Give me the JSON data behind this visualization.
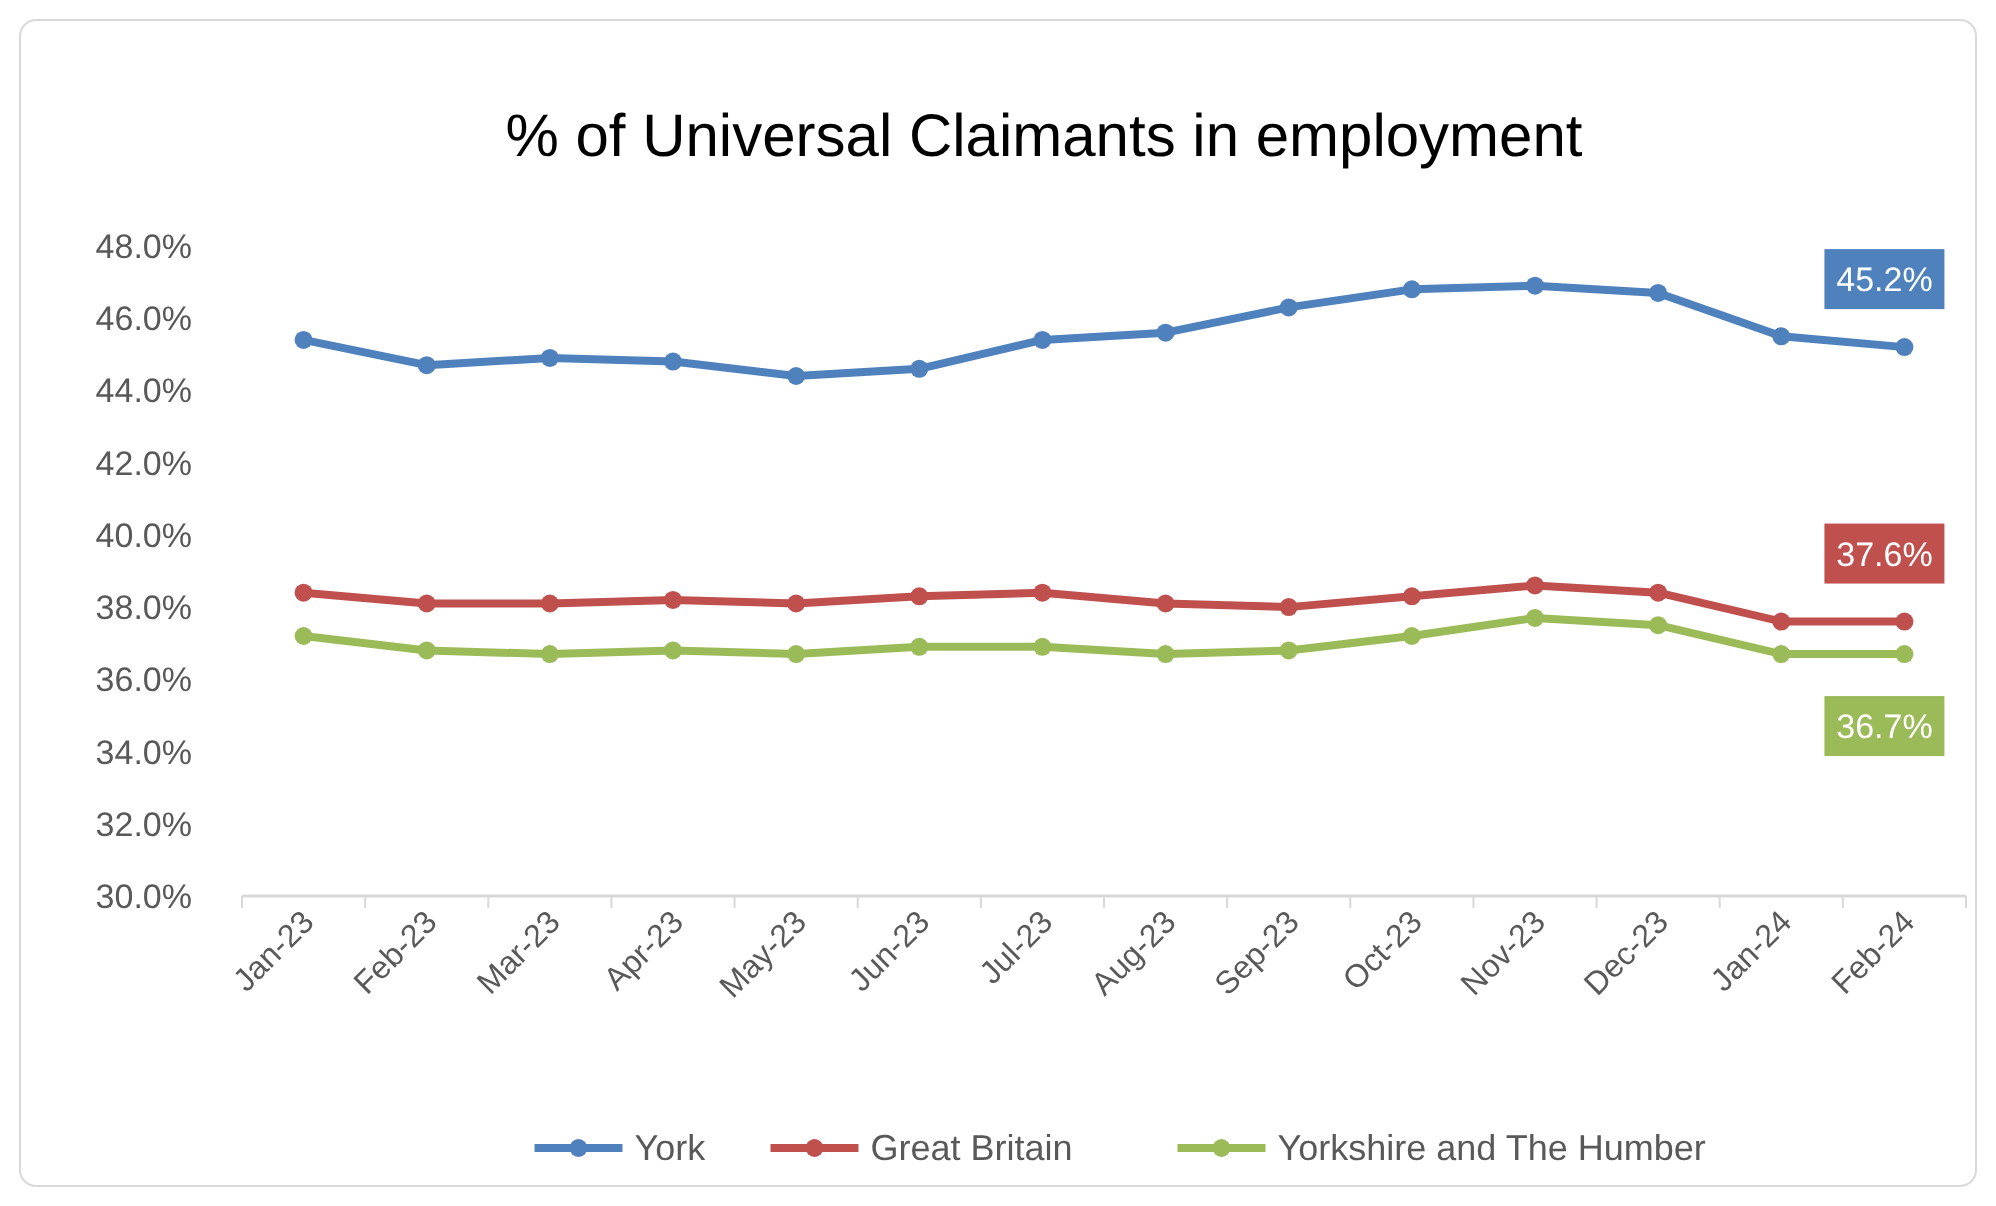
{
  "chart_data": {
    "type": "line",
    "title": "% of Universal Claimants in employment",
    "categories": [
      "Jan-23",
      "Feb-23",
      "Mar-23",
      "Apr-23",
      "May-23",
      "Jun-23",
      "Jul-23",
      "Aug-23",
      "Sep-23",
      "Oct-23",
      "Nov-23",
      "Dec-23",
      "Jan-24",
      "Feb-24"
    ],
    "series": [
      {
        "name": "York",
        "color": "#4f81bd",
        "values": [
          45.4,
          44.7,
          44.9,
          44.8,
          44.4,
          44.6,
          45.4,
          45.6,
          46.3,
          46.8,
          46.9,
          46.7,
          45.5,
          45.2
        ],
        "value_labels": [
          null,
          null,
          null,
          null,
          null,
          null,
          null,
          null,
          null,
          null,
          null,
          null,
          null,
          "45.2%"
        ]
      },
      {
        "name": "Great Britain",
        "color": "#c0504d",
        "values": [
          38.4,
          38.1,
          38.1,
          38.2,
          38.1,
          38.3,
          38.4,
          38.1,
          38.0,
          38.3,
          38.6,
          38.4,
          37.6,
          37.6
        ],
        "value_labels": [
          null,
          null,
          null,
          null,
          null,
          null,
          null,
          null,
          null,
          null,
          null,
          null,
          null,
          "37.6%"
        ]
      },
      {
        "name": "Yorkshire and The Humber",
        "color": "#9bbb59",
        "values": [
          37.2,
          36.8,
          36.7,
          36.8,
          36.7,
          36.9,
          36.9,
          36.7,
          36.8,
          37.2,
          37.7,
          37.5,
          36.7,
          36.7
        ],
        "value_labels": [
          null,
          null,
          null,
          null,
          null,
          null,
          null,
          null,
          null,
          null,
          null,
          null,
          null,
          "36.7%"
        ]
      }
    ],
    "ylim": [
      30,
      48
    ],
    "yticks": [
      {
        "value": 30,
        "label": "30.0%"
      },
      {
        "value": 32,
        "label": "32.0%"
      },
      {
        "value": 34,
        "label": "34.0%"
      },
      {
        "value": 36,
        "label": "36.0%"
      },
      {
        "value": 38,
        "label": "38.0%"
      },
      {
        "value": 40,
        "label": "40.0%"
      },
      {
        "value": 42,
        "label": "42.0%"
      },
      {
        "value": 44,
        "label": "44.0%"
      },
      {
        "value": 46,
        "label": "46.0%"
      },
      {
        "value": 48,
        "label": "48.0%"
      }
    ],
    "grid": false,
    "legend": "bottom",
    "marker": "circle",
    "line_style": "solid"
  }
}
